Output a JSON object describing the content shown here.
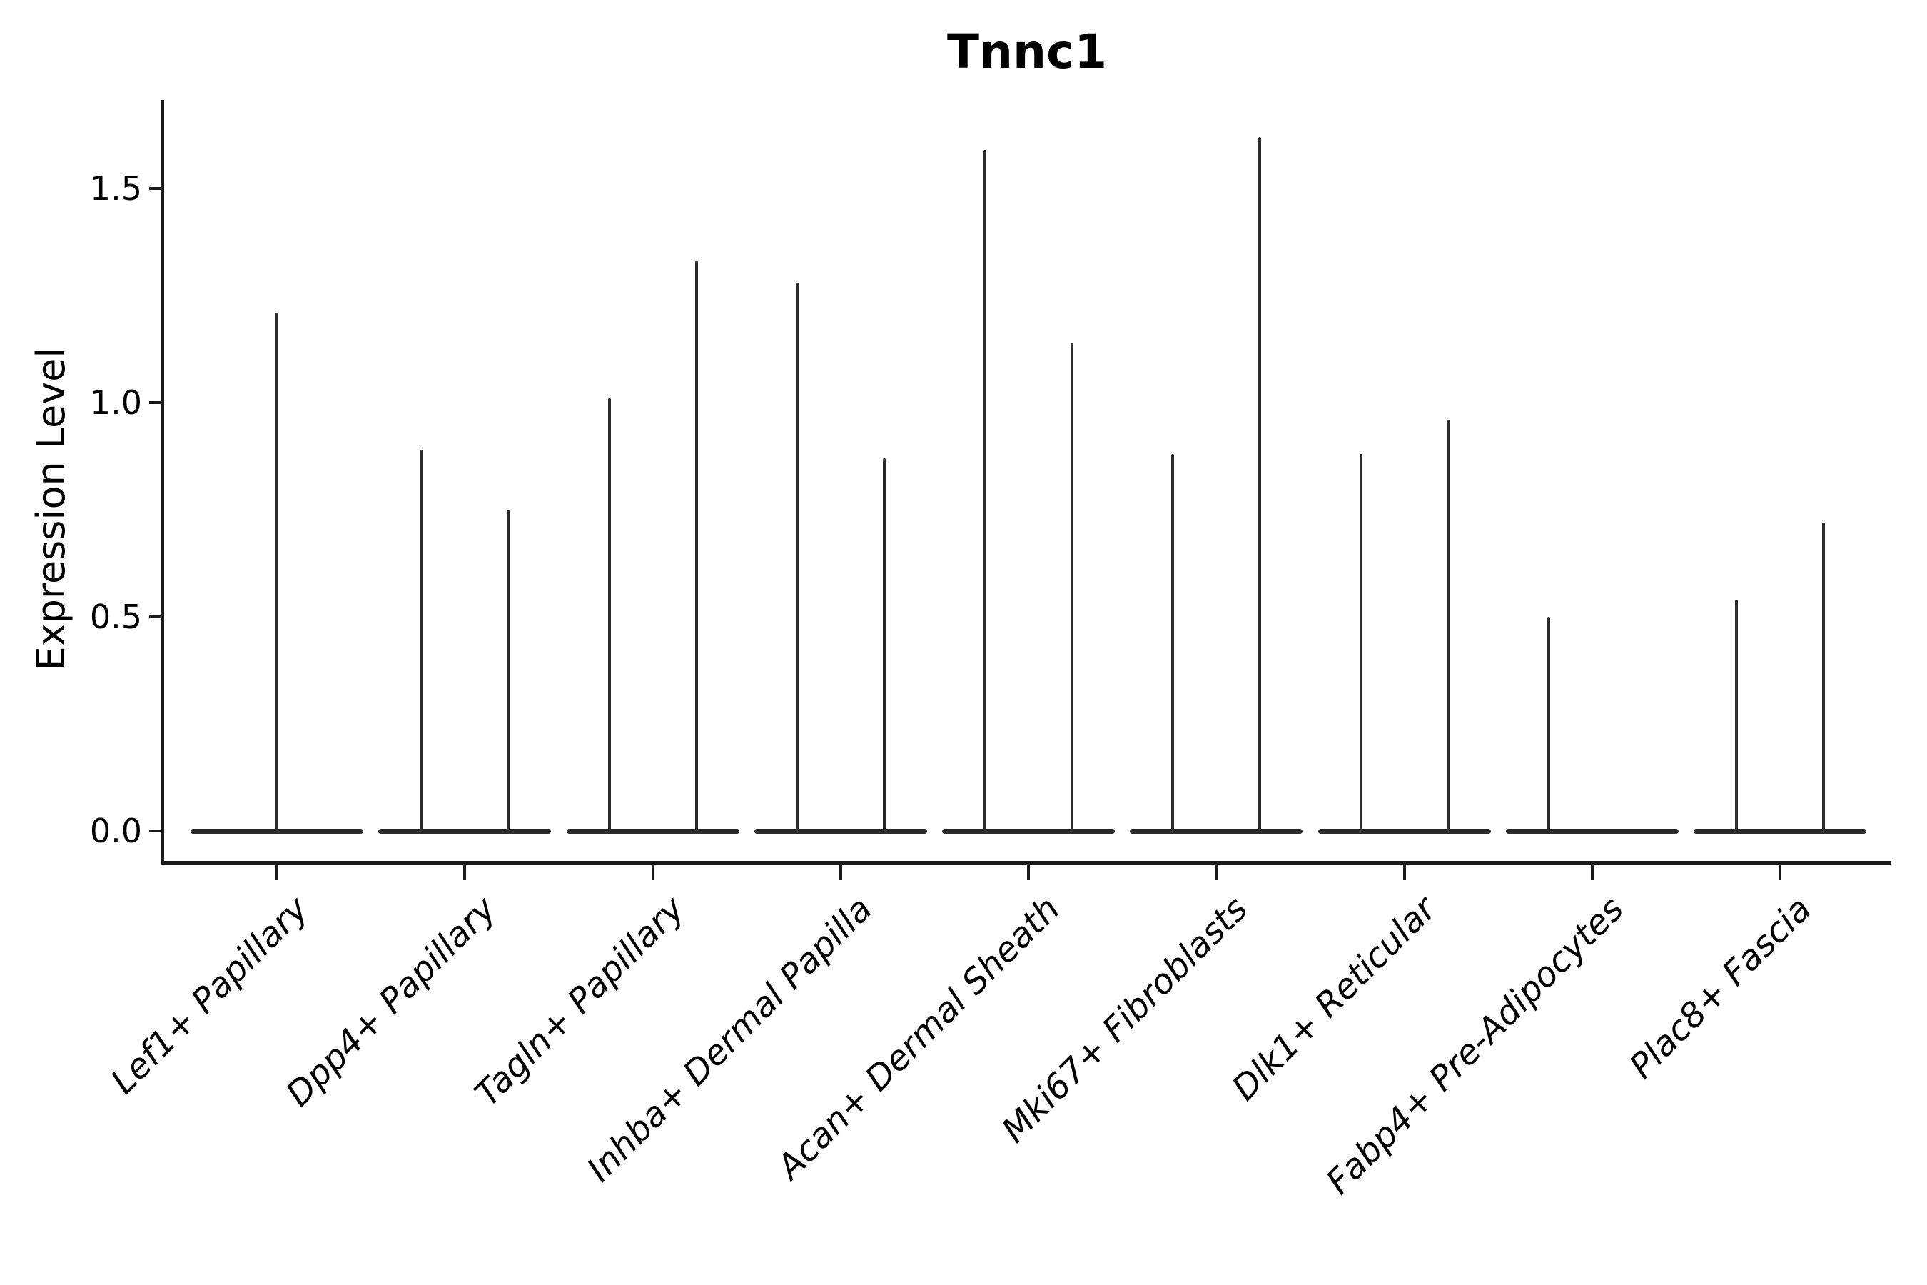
{
  "chart_data": {
    "type": "violin",
    "title": "Tnnc1",
    "xlabel": "",
    "ylabel": "Expression Level",
    "background_color": "#ffffff",
    "line_color": "#2b2b2b",
    "text_color": "#000000",
    "grid": false,
    "legend": false,
    "y_tick_labels": [
      "0.0",
      "0.5",
      "1.0",
      "1.5"
    ],
    "y_tick_values": [
      0.0,
      0.5,
      1.0,
      1.5
    ],
    "ylim": [
      -0.09,
      1.7
    ],
    "x_tick_rotation_deg": 45,
    "x_tick_font_style": "italic",
    "categories": [
      "Lef1+ Papillary",
      "Dpp4+ Papillary",
      "Tagln+ Papillary",
      "Inhba+ Dermal Papilla",
      "Acan+ Dermal Sheath",
      "Mki67+ Fibroblasts",
      "Dlk1+ Reticular",
      "Fabp4+ Pre-Adipocytes",
      "Plac8+ Fascia"
    ],
    "violins": [
      {
        "category": "Lef1+ Papillary",
        "baseline_value": 0.0,
        "spikes": [
          {
            "position": "center",
            "max_expression": 1.21
          }
        ]
      },
      {
        "category": "Dpp4+ Papillary",
        "baseline_value": 0.0,
        "spikes": [
          {
            "position": "left",
            "max_expression": 0.89
          },
          {
            "position": "right",
            "max_expression": 0.75
          }
        ]
      },
      {
        "category": "Tagln+ Papillary",
        "baseline_value": 0.0,
        "spikes": [
          {
            "position": "left",
            "max_expression": 1.01
          },
          {
            "position": "right",
            "max_expression": 1.33
          }
        ]
      },
      {
        "category": "Inhba+ Dermal Papilla",
        "baseline_value": 0.0,
        "spikes": [
          {
            "position": "left",
            "max_expression": 1.28
          },
          {
            "position": "right",
            "max_expression": 0.87
          }
        ]
      },
      {
        "category": "Acan+ Dermal Sheath",
        "baseline_value": 0.0,
        "spikes": [
          {
            "position": "left",
            "max_expression": 1.59
          },
          {
            "position": "right",
            "max_expression": 1.14
          }
        ]
      },
      {
        "category": "Mki67+ Fibroblasts",
        "baseline_value": 0.0,
        "spikes": [
          {
            "position": "left",
            "max_expression": 0.88
          },
          {
            "position": "right",
            "max_expression": 1.62
          }
        ]
      },
      {
        "category": "Dlk1+ Reticular",
        "baseline_value": 0.0,
        "spikes": [
          {
            "position": "left",
            "max_expression": 0.88
          },
          {
            "position": "right",
            "max_expression": 0.96
          }
        ]
      },
      {
        "category": "Fabp4+ Pre-Adipocytes",
        "baseline_value": 0.0,
        "spikes": [
          {
            "position": "left",
            "max_expression": 0.5
          }
        ]
      },
      {
        "category": "Plac8+ Fascia",
        "baseline_value": 0.0,
        "spikes": [
          {
            "position": "left",
            "max_expression": 0.54
          },
          {
            "position": "right",
            "max_expression": 0.72
          }
        ]
      }
    ]
  }
}
